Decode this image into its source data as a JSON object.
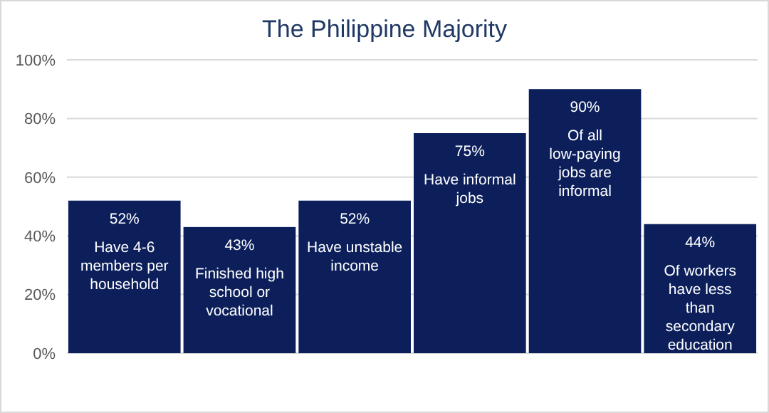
{
  "chart_data": {
    "type": "bar",
    "title": "The Philippine Majority",
    "categories": [
      "Have 4-6 members per household",
      "Finished high school or vocational",
      "Have unstable income",
      "Have informal jobs",
      "Of all low-paying jobs are informal",
      "Of workers have less than secondary education"
    ],
    "values": [
      52,
      43,
      52,
      75,
      90,
      44
    ],
    "value_labels": [
      "52%",
      "43%",
      "52%",
      "75%",
      "90%",
      "44%"
    ],
    "color": "#0c1f5b",
    "ylim": [
      0,
      100
    ],
    "yticks": [
      {
        "value": 0,
        "label": "0%"
      },
      {
        "value": 20,
        "label": "20%"
      },
      {
        "value": 40,
        "label": "40%"
      },
      {
        "value": 60,
        "label": "60%"
      },
      {
        "value": 80,
        "label": "80%"
      },
      {
        "value": 100,
        "label": "100%"
      }
    ],
    "grid": "y"
  }
}
